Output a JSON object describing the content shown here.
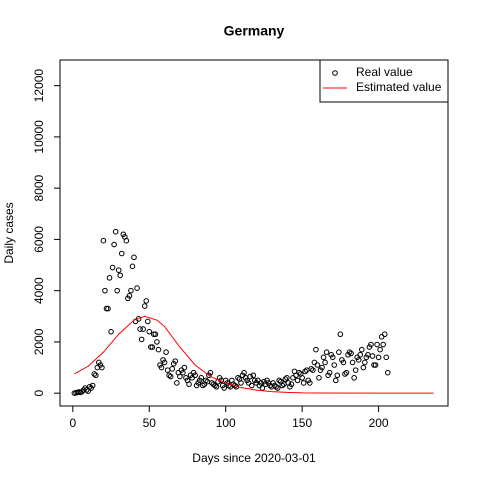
{
  "chart_data": {
    "type": "scatter",
    "title": "Germany",
    "x_label": "Days since 2020-03-01",
    "y_label": "Daily cases",
    "xlim": [
      -8.4,
      245.4
    ],
    "ylim": [
      -500,
      13000
    ],
    "xticks": [
      0,
      50,
      100,
      150,
      200
    ],
    "yticks": [
      0,
      2000,
      4000,
      6000,
      8000,
      10000,
      12000
    ],
    "legend": "top-right",
    "series": [
      {
        "name": "Real value",
        "kind": "points",
        "color": "#000000",
        "x": [
          1,
          2,
          3,
          4,
          5,
          6,
          7,
          8,
          9,
          10,
          11,
          12,
          13,
          14,
          15,
          16,
          17,
          18,
          19,
          20,
          21,
          22,
          23,
          24,
          25,
          26,
          27,
          28,
          29,
          30,
          31,
          32,
          33,
          34,
          35,
          36,
          37,
          38,
          39,
          40,
          41,
          42,
          43,
          44,
          45,
          46,
          47,
          48,
          49,
          50,
          51,
          52,
          53,
          54,
          55,
          56,
          57,
          58,
          59,
          60,
          61,
          62,
          63,
          64,
          65,
          66,
          67,
          68,
          69,
          70,
          71,
          72,
          73,
          74,
          75,
          76,
          77,
          78,
          79,
          80,
          81,
          82,
          83,
          84,
          85,
          86,
          87,
          88,
          89,
          90,
          91,
          92,
          93,
          94,
          95,
          96,
          97,
          98,
          99,
          100,
          101,
          102,
          103,
          104,
          105,
          106,
          107,
          108,
          109,
          110,
          111,
          112,
          113,
          114,
          115,
          116,
          117,
          118,
          119,
          120,
          121,
          122,
          123,
          124,
          125,
          126,
          127,
          128,
          129,
          130,
          131,
          132,
          133,
          134,
          135,
          136,
          137,
          138,
          139,
          140,
          141,
          142,
          143,
          144,
          145,
          146,
          147,
          148,
          149,
          150,
          151,
          152,
          153,
          154,
          155,
          156,
          157,
          158,
          159,
          160,
          161,
          162,
          163,
          164,
          165,
          166,
          167,
          168,
          169,
          170,
          171,
          172,
          173,
          174,
          175,
          176,
          177,
          178,
          179,
          180,
          181,
          182,
          183,
          184,
          185,
          186,
          187,
          188,
          189,
          190,
          191,
          192,
          193,
          194,
          195,
          196,
          197,
          198,
          199,
          200,
          201,
          202,
          203,
          204,
          205,
          206
        ],
        "values": [
          0,
          20,
          30,
          50,
          30,
          60,
          120,
          200,
          130,
          80,
          250,
          200,
          300,
          750,
          700,
          1000,
          1200,
          1100,
          1000,
          5950,
          4000,
          3300,
          3300,
          4500,
          2400,
          4900,
          5800,
          6300,
          4000,
          4800,
          4600,
          5450,
          6200,
          6100,
          5950,
          3700,
          3800,
          4000,
          4950,
          5300,
          2800,
          4100,
          2900,
          2500,
          2100,
          2500,
          3400,
          3600,
          2800,
          2400,
          1800,
          1800,
          2300,
          2300,
          2000,
          1700,
          1100,
          1000,
          1300,
          1200,
          1600,
          900,
          700,
          650,
          950,
          1150,
          1250,
          400,
          800,
          650,
          900,
          800,
          1000,
          600,
          500,
          350,
          700,
          600,
          800,
          700,
          300,
          400,
          500,
          600,
          300,
          350,
          500,
          450,
          700,
          800,
          400,
          350,
          300,
          250,
          450,
          600,
          500,
          300,
          200,
          500,
          400,
          300,
          250,
          500,
          350,
          300,
          250,
          600,
          550,
          400,
          700,
          800,
          600,
          500,
          400,
          650,
          300,
          700,
          500,
          400,
          500,
          300,
          400,
          200,
          450,
          350,
          500,
          400,
          300,
          250,
          400,
          300,
          250,
          200,
          500,
          450,
          300,
          350,
          550,
          600,
          400,
          250,
          350,
          600,
          850,
          700,
          500,
          800,
          750,
          600,
          400,
          850,
          900,
          500,
          400,
          950,
          900,
          1200,
          1700,
          1100,
          600,
          900,
          1000,
          1400,
          1200,
          1600,
          700,
          800,
          1500,
          1400,
          1100,
          500,
          700,
          1600,
          2300,
          1300,
          1200,
          750,
          800,
          1500,
          1600,
          1550,
          1200,
          600,
          900,
          1400,
          1300,
          1500,
          1700,
          1000,
          1200,
          1400,
          1500,
          1800,
          1900,
          1450,
          1100,
          1100,
          1900,
          1400,
          1700,
          2200,
          1900,
          2300,
          1400,
          800
        ]
      },
      {
        "name": "Estimated value",
        "kind": "line",
        "color": "#ff0000",
        "x": [
          1,
          10,
          20,
          30,
          40,
          47,
          55,
          60,
          70,
          80,
          90,
          100,
          110,
          120,
          130,
          140,
          150,
          160,
          200,
          236
        ],
        "values": [
          750,
          1050,
          1600,
          2300,
          2850,
          3000,
          2850,
          2600,
          1800,
          1100,
          650,
          400,
          220,
          120,
          60,
          30,
          10,
          5,
          0,
          0
        ]
      }
    ]
  }
}
